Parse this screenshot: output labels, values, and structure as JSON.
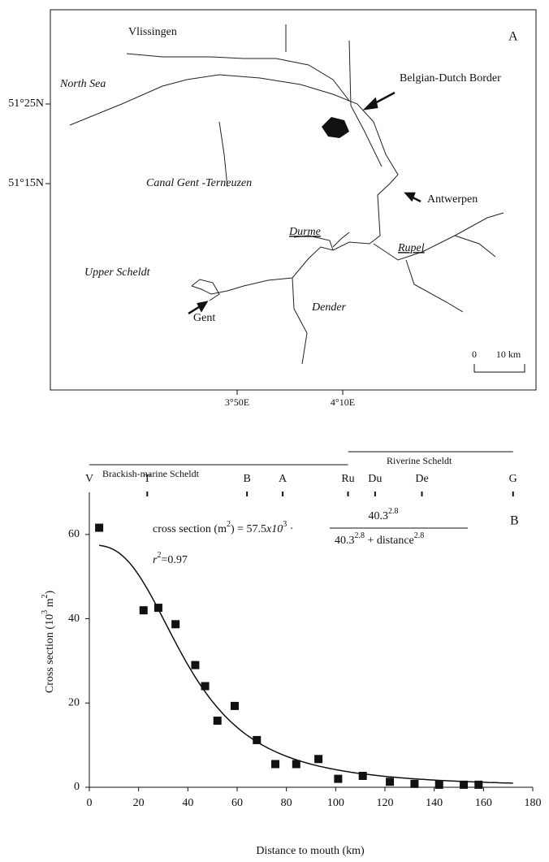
{
  "map": {
    "panel_label": "A",
    "lat_ticks": [
      "51°25N",
      "51°15N"
    ],
    "lon_ticks": [
      "3°50E",
      "4°10E"
    ],
    "places": [
      "Vlissingen",
      "North Sea",
      "Belgian-Dutch Border",
      "Canal Gent -Terneuzen",
      "Antwerpen",
      "Durme",
      "Rupel",
      "Upper Scheldt",
      "Gent",
      "Dender"
    ],
    "scale_bar": [
      "0",
      "10 km"
    ]
  },
  "chart_data": {
    "type": "scatter",
    "panel_label": "B",
    "xlabel": "Distance to mouth (km)",
    "ylabel": [
      "Cross section (10",
      "3",
      " m",
      "2",
      ")"
    ],
    "xlim": [
      0,
      180
    ],
    "xticks": [
      0,
      20,
      40,
      60,
      80,
      100,
      120,
      140,
      160,
      180
    ],
    "ylim": [
      0,
      70
    ],
    "yticks": [
      0,
      20,
      40,
      60
    ],
    "color": "#111111",
    "x": [
      4,
      22,
      28,
      35,
      43,
      47,
      52,
      59,
      68,
      75.5,
      84,
      93,
      101,
      111,
      122,
      132,
      142,
      152,
      158
    ],
    "values": [
      61.6,
      42,
      42.6,
      38.7,
      29,
      24,
      15.8,
      19.3,
      11.2,
      5.5,
      5.5,
      6.7,
      2,
      2.7,
      1.3,
      0.8,
      0.6,
      0.6,
      0.6
    ],
    "fit": {
      "a": 57.5,
      "k": 40.3,
      "n": 2.8
    },
    "equation": {
      "lhs": "cross  section (m",
      "lhs_sup": "2",
      "mid": ") = ",
      "times": "x10",
      "times_sup": "3",
      "dot": " ·",
      "plus": " + distance"
    },
    "r2": {
      "r": "r",
      "sup": "2",
      "text": "=0.97"
    },
    "zones": [
      "Brackish-marine Scheldt",
      "Riverine Scheldt"
    ],
    "stations": {
      "names": [
        "V",
        "T",
        "B",
        "A",
        "Ru",
        "Du",
        "De",
        "G"
      ],
      "x": [
        0,
        23.5,
        64,
        78.5,
        105,
        116,
        135,
        172
      ]
    }
  }
}
